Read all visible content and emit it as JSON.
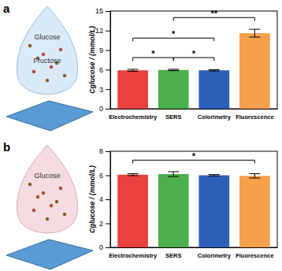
{
  "chart_data": [
    {
      "type": "bar",
      "panel_label": "a",
      "illustration_labels": [
        "Glucose",
        "Fructose"
      ],
      "y_label": "Cglucose / (mmol/L)",
      "categories": [
        "Electrochemistry",
        "SERS",
        "Colorimetry",
        "Fluorescence"
      ],
      "values": [
        5.9,
        5.95,
        5.9,
        11.6
      ],
      "errors": [
        0.15,
        0.1,
        0.1,
        0.6
      ],
      "colors": [
        "#e8413f",
        "#4cae4c",
        "#2e5fb8",
        "#f5a04a"
      ],
      "ylim": [
        0,
        15
      ],
      "yticks": [
        0,
        3,
        6,
        9,
        12,
        15
      ],
      "significance": [
        {
          "from": 0,
          "to": 1,
          "label": "*"
        },
        {
          "from": 1,
          "to": 2,
          "label": "*"
        },
        {
          "from": 0,
          "to": 2,
          "label": "*"
        },
        {
          "from": 1,
          "to": 3,
          "label": "**"
        }
      ]
    },
    {
      "type": "bar",
      "panel_label": "b",
      "illustration_labels": [
        "Glucose"
      ],
      "y_label": "Cglucose / (mmol/L)",
      "categories": [
        "Electrochemistry",
        "SERS",
        "Colorimetry",
        "Fluorescence"
      ],
      "values": [
        6.05,
        6.1,
        6.0,
        5.95
      ],
      "errors": [
        0.08,
        0.2,
        0.06,
        0.18
      ],
      "colors": [
        "#e8413f",
        "#4cae4c",
        "#2e5fb8",
        "#f5a04a"
      ],
      "ylim": [
        0,
        8
      ],
      "yticks": [
        0,
        2,
        4,
        6,
        8
      ],
      "significance": [
        {
          "from": 0,
          "to": 3,
          "label": "*"
        }
      ]
    }
  ]
}
